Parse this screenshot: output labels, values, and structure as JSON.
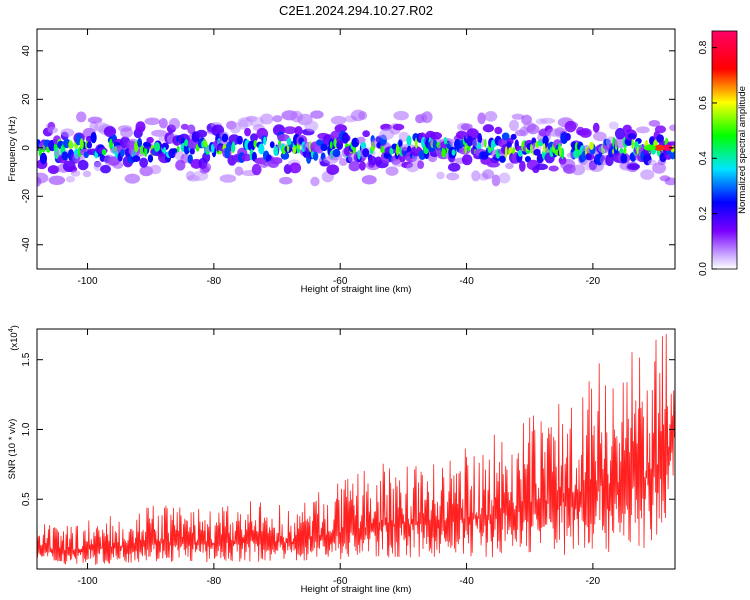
{
  "figure_title": "C2E1.2024.294.10.27.R02",
  "chart_data": [
    {
      "type": "heatmap",
      "title": "C2E1.2024.294.10.27.R02",
      "xlabel": "Height of straight line (km)",
      "ylabel": "Frequency (Hz)",
      "xlim": [
        -108,
        -7
      ],
      "ylim": [
        -50,
        49
      ],
      "x_ticks": [
        -100,
        -80,
        -60,
        -40,
        -20
      ],
      "y_ticks": [
        -40,
        -20,
        0,
        20,
        40
      ],
      "x_tick_labels": [
        "-100",
        "-80",
        "-60",
        "-40",
        "-20"
      ],
      "y_tick_labels": [
        "-40",
        "-20",
        "0",
        "20",
        "40"
      ],
      "colorbar": {
        "label": "Normalized spectral amplitude",
        "range": [
          0,
          0.86
        ],
        "ticks": [
          0.0,
          0.2,
          0.4,
          0.6,
          0.8
        ],
        "tick_labels": [
          "0.0",
          "0.2",
          "0.4",
          "0.6",
          "0.8"
        ],
        "colors": [
          "#ffffff",
          "#7a00ff",
          "#0000ff",
          "#00e5ff",
          "#00ff00",
          "#ffff00",
          "#ff0000",
          "#ff0066"
        ]
      },
      "band": {
        "description_values": "energy concentrated near 0 Hz across all heights, strongest near the top",
        "center_freq_hz": 0,
        "half_width_hz": 8,
        "peak_amplitude": 0.86,
        "peak_height_km": -8
      },
      "grid": false
    },
    {
      "type": "line",
      "xlabel": "Height of straight line (km)",
      "ylabel": "SNR (10 * v/v)",
      "y_multiplier_label": "(x10",
      "y_multiplier_exp": "4",
      "xlim": [
        -108,
        -7
      ],
      "ylim": [
        0,
        1.72
      ],
      "x_ticks": [
        -100,
        -80,
        -60,
        -40,
        -20
      ],
      "y_ticks": [
        0.5,
        1.0,
        1.5
      ],
      "x_tick_labels": [
        "-100",
        "-80",
        "-60",
        "-40",
        "-20"
      ],
      "y_tick_labels": [
        "0.5",
        "1.0",
        "1.5"
      ],
      "line_color": "#ff2020",
      "series": [
        {
          "x": [
            -108,
            -104,
            -100,
            -96,
            -92,
            -88,
            -84,
            -80,
            -76,
            -72,
            -68,
            -64,
            -60,
            -56,
            -52,
            -48,
            -44,
            -40,
            -36,
            -32,
            -28,
            -24,
            -20,
            -16,
            -12,
            -8,
            -7
          ],
          "envelope_max": [
            0.33,
            0.3,
            0.37,
            0.38,
            0.45,
            0.47,
            0.46,
            0.44,
            0.48,
            0.5,
            0.44,
            0.55,
            0.62,
            0.72,
            0.77,
            0.78,
            0.77,
            0.88,
            0.97,
            1.05,
            1.18,
            1.3,
            1.48,
            1.55,
            1.6,
            1.71,
            1.3
          ],
          "envelope_min": [
            0.04,
            0.03,
            0.03,
            0.03,
            0.05,
            0.05,
            0.05,
            0.04,
            0.05,
            0.05,
            0.05,
            0.06,
            0.06,
            0.07,
            0.08,
            0.08,
            0.08,
            0.09,
            0.08,
            0.1,
            0.1,
            0.1,
            0.11,
            0.12,
            0.12,
            0.25,
            0.8
          ]
        }
      ],
      "grid": false
    }
  ]
}
